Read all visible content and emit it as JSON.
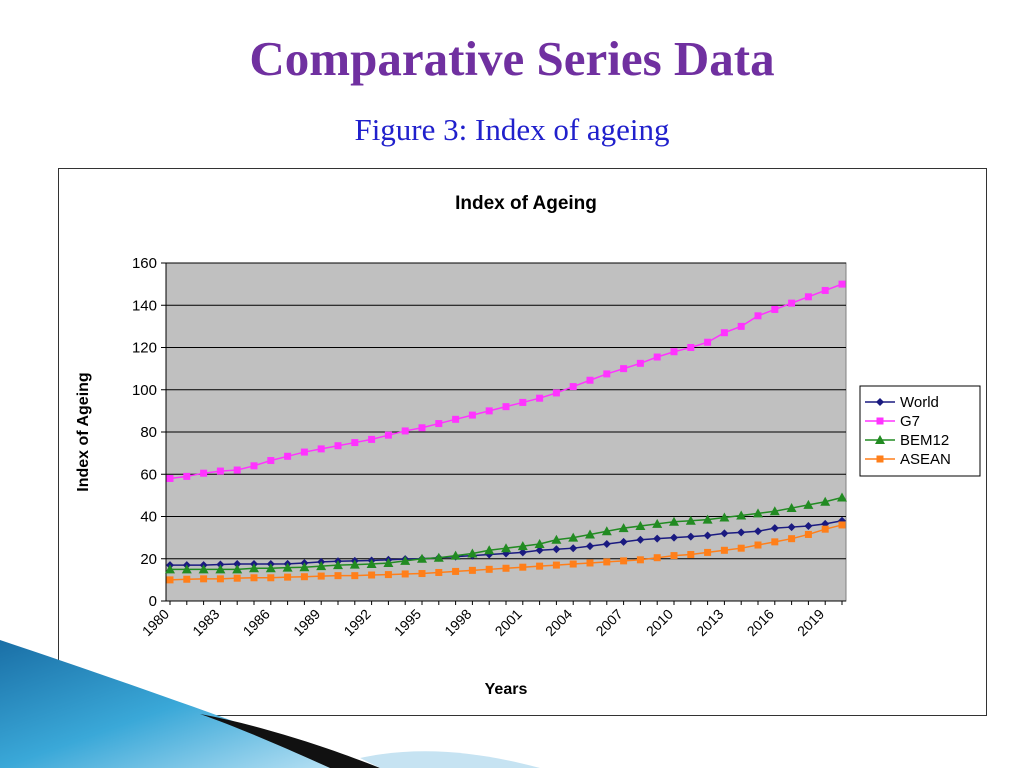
{
  "slide": {
    "title": "Comparative Series Data",
    "subtitle": "Figure 3: Index of ageing"
  },
  "colors": {
    "title": "#7030a0",
    "subtitle": "#2020cc",
    "plot_bg": "#c0c0c0",
    "World": "#1a1a80",
    "G7": "#ff33ff",
    "BEM12": "#228b22",
    "ASEAN": "#ff7f1a"
  },
  "chart_data": {
    "type": "line",
    "title": "Index of Ageing",
    "xlabel": "Years",
    "ylabel": "Index of Ageing",
    "ylim": [
      0,
      160
    ],
    "yticks": [
      0,
      20,
      40,
      60,
      80,
      100,
      120,
      140,
      160
    ],
    "xticks": [
      "1980",
      "1983",
      "1986",
      "1989",
      "1992",
      "1995",
      "1998",
      "2001",
      "2004",
      "2007",
      "2010",
      "2013",
      "2016",
      "2019"
    ],
    "grid": "horizontal",
    "legend_position": "right",
    "x": [
      1980,
      1981,
      1982,
      1983,
      1984,
      1985,
      1986,
      1987,
      1988,
      1989,
      1990,
      1991,
      1992,
      1993,
      1994,
      1995,
      1996,
      1997,
      1998,
      1999,
      2000,
      2001,
      2002,
      2003,
      2004,
      2005,
      2006,
      2007,
      2008,
      2009,
      2010,
      2011,
      2012,
      2013,
      2014,
      2015,
      2016,
      2017,
      2018,
      2019,
      2020
    ],
    "series": [
      {
        "name": "World",
        "marker": "diamond",
        "values": [
          17,
          17,
          17,
          17.3,
          17.5,
          17.5,
          17.5,
          17.6,
          18,
          18.5,
          18.8,
          19,
          19.2,
          19.5,
          19.8,
          20,
          20.5,
          21,
          21.5,
          22,
          22.5,
          23,
          24,
          24.5,
          25,
          26,
          27,
          28,
          29,
          29.5,
          30,
          30.5,
          31,
          32,
          32.5,
          33,
          34.5,
          35,
          35.5,
          36.5,
          38
        ]
      },
      {
        "name": "G7",
        "marker": "square",
        "values": [
          58,
          59,
          60.5,
          61.5,
          62,
          64,
          66.5,
          68.5,
          70.5,
          72,
          73.5,
          75,
          76.5,
          78.5,
          80.5,
          82,
          84,
          86,
          88,
          90,
          92,
          94,
          96,
          98.5,
          101.5,
          104.5,
          107.5,
          110,
          112.5,
          115.5,
          118,
          120,
          122.5,
          127,
          130,
          135,
          138,
          141,
          144,
          147,
          150
        ]
      },
      {
        "name": "BEM12",
        "marker": "triangle",
        "values": [
          15,
          15,
          15,
          15,
          15,
          15.5,
          15.5,
          15.8,
          16,
          16.5,
          17,
          17.2,
          17.5,
          18,
          19,
          20,
          20.5,
          21.5,
          22.5,
          24,
          25,
          26,
          27,
          29,
          30,
          31.5,
          33,
          34.5,
          35.5,
          36.5,
          37.5,
          38,
          38.5,
          39.5,
          40.5,
          41.5,
          42.5,
          44,
          45.5,
          47,
          49
        ]
      },
      {
        "name": "ASEAN",
        "marker": "square",
        "values": [
          10,
          10.3,
          10.5,
          10.5,
          10.8,
          11,
          11,
          11.3,
          11.5,
          11.8,
          12,
          12,
          12.3,
          12.5,
          12.8,
          13,
          13.5,
          14,
          14.5,
          15,
          15.5,
          16,
          16.5,
          17,
          17.5,
          18,
          18.5,
          19,
          19.5,
          20.5,
          21.5,
          22,
          23,
          24,
          25,
          26.5,
          28,
          29.5,
          31.5,
          34,
          36
        ]
      }
    ]
  }
}
